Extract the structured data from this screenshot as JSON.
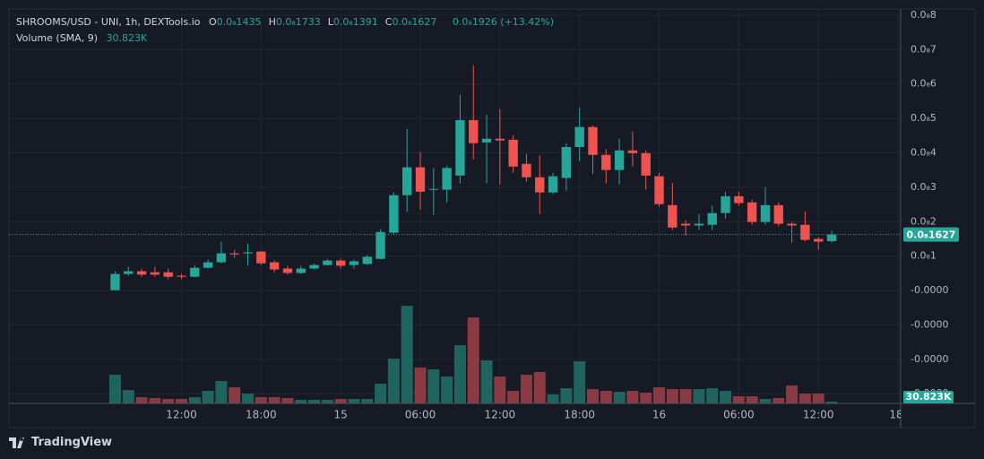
{
  "chart_data": {
    "type": "candlestick",
    "title": "SHROOMS/USD - UNI, 1h, DEXTools.io",
    "ohlc_labels": [
      "O",
      "H",
      "L",
      "C"
    ],
    "ohlc_values": [
      "0.0₈1435",
      "0.0₈1733",
      "0.0₈1391",
      "0.0₈1627"
    ],
    "change": "0.0₈1926 (+13.42%)",
    "volume_title": "Volume (SMA, 9)",
    "volume_sma_label": "30.823K",
    "last_price_label": "0.0₈1627",
    "x": [
      0,
      1,
      2,
      3,
      4,
      5,
      6,
      7,
      8,
      9,
      10,
      11,
      12,
      13,
      14,
      15,
      16,
      17,
      18,
      19,
      20,
      21,
      22,
      23,
      24,
      25,
      26,
      27,
      28,
      29,
      30,
      31,
      32,
      33,
      34,
      35,
      36,
      37,
      38,
      39,
      40,
      41,
      42,
      43,
      44,
      45,
      46,
      47,
      48,
      49,
      50,
      51,
      52,
      53,
      54
    ],
    "open": [
      1e-11,
      4.8e-10,
      5.6e-10,
      5.3e-10,
      5.3e-10,
      4.3e-10,
      4e-10,
      6.6e-10,
      8.2e-10,
      1.08e-09,
      1.08e-09,
      1.13e-09,
      8.2e-10,
      6.4e-10,
      5.1e-10,
      6.4e-10,
      7.4e-10,
      8.7e-10,
      7.4e-10,
      7.7e-10,
      9.2e-10,
      1.68e-09,
      2.77e-09,
      3.58e-09,
      2.93e-09,
      2.93e-09,
      3.34e-09,
      4.95e-09,
      4.3e-09,
      4.41e-09,
      4.38e-09,
      3.68e-09,
      3.29e-09,
      2.85e-09,
      3.27e-09,
      4.17e-09,
      4.75e-09,
      3.94e-09,
      3.5e-09,
      4.07e-09,
      3.99e-09,
      3.32e-09,
      2.48e-09,
      1.94e-09,
      1.89e-09,
      1.91e-09,
      2.25e-09,
      2.74e-09,
      2.56e-09,
      1.99e-09,
      2.48e-09,
      1.94e-09,
      1.91e-09,
      1.5e-09,
      1.435e-09
    ],
    "close": [
      4.8e-10,
      5.6e-10,
      4.6e-10,
      4.6e-10,
      4e-10,
      4e-10,
      6.6e-10,
      8.2e-10,
      1.08e-09,
      1.05e-09,
      1.11e-09,
      7.9e-10,
      6.1e-10,
      5.1e-10,
      6.4e-10,
      7.4e-10,
      8.7e-10,
      7.2e-10,
      8.5e-10,
      9.8e-10,
      1.7e-09,
      2.77e-09,
      3.58e-09,
      2.87e-09,
      2.95e-09,
      3.56e-09,
      4.95e-09,
      4.28e-09,
      4.41e-09,
      4.36e-09,
      3.6e-09,
      3.29e-09,
      2.85e-09,
      3.32e-09,
      4.17e-09,
      4.75e-09,
      3.94e-09,
      3.5e-09,
      4.07e-09,
      3.99e-09,
      3.34e-09,
      2.51e-09,
      1.83e-09,
      1.89e-09,
      1.94e-09,
      2.25e-09,
      2.74e-09,
      2.54e-09,
      1.99e-09,
      2.48e-09,
      1.94e-09,
      1.89e-09,
      1.47e-09,
      1.42e-09,
      1.627e-09
    ],
    "high": [
      5.6e-10,
      6.9e-10,
      6.4e-10,
      6.9e-10,
      6.4e-10,
      4.8e-10,
      7.4e-10,
      9e-10,
      1.42e-09,
      1.18e-09,
      1.37e-09,
      1.16e-09,
      8.7e-10,
      7.2e-10,
      7.2e-10,
      7.9e-10,
      9.2e-10,
      9.2e-10,
      9e-10,
      1.03e-09,
      1.78e-09,
      2.85e-09,
      4.7e-09,
      4.02e-09,
      3.56e-09,
      3.62e-09,
      5.69e-09,
      6.54e-09,
      5.11e-09,
      5.27e-09,
      4.51e-09,
      3.97e-09,
      3.92e-09,
      3.42e-09,
      4.28e-09,
      5.32e-09,
      4.8e-09,
      4.1e-09,
      4.41e-09,
      4.62e-09,
      4.07e-09,
      3.42e-09,
      3.13e-09,
      2.04e-09,
      2.22e-09,
      2.46e-09,
      2.87e-09,
      2.87e-09,
      2.64e-09,
      3e-09,
      2.56e-09,
      1.99e-09,
      2.3e-09,
      1.55e-09,
      1.733e-09
    ],
    "low": [
      0,
      4.3e-10,
      4e-10,
      4e-10,
      3.3e-10,
      3.3e-10,
      3.8e-10,
      6.4e-10,
      7.9e-10,
      9.5e-10,
      7.2e-10,
      7.4e-10,
      5.3e-10,
      4.6e-10,
      4.8e-10,
      6.1e-10,
      7.2e-10,
      6.4e-10,
      6.4e-10,
      7.4e-10,
      9e-10,
      1.63e-09,
      2.28e-09,
      2.35e-09,
      2.2e-09,
      2.56e-09,
      3.11e-09,
      3.81e-09,
      3.11e-09,
      3.08e-09,
      3.42e-09,
      3.16e-09,
      2.22e-09,
      2.8e-09,
      2.9e-09,
      3.76e-09,
      3.39e-09,
      3.11e-09,
      3.08e-09,
      3.6e-09,
      2.93e-09,
      2.43e-09,
      1.76e-09,
      1.6e-09,
      1.76e-09,
      1.76e-09,
      2.09e-09,
      2.46e-09,
      1.91e-09,
      1.91e-09,
      1.87e-09,
      1.39e-09,
      1.42e-09,
      1.18e-09,
      1.391e-09
    ],
    "volume": [
      104640,
      49050,
      22890,
      19620,
      16350,
      16350,
      22890,
      45780,
      81750,
      58860,
      35970,
      22890,
      22890,
      19620,
      13080,
      13080,
      13080,
      16350,
      16350,
      16350,
      71940,
      163500,
      356430,
      130800,
      124260,
      98100,
      212550,
      313920,
      156960,
      98100,
      45780,
      104640,
      114450,
      32700,
      55590,
      153690,
      52320,
      45780,
      42510,
      45780,
      39240,
      58860,
      52320,
      52320,
      52320,
      55590,
      45780,
      26160,
      26160,
      16350,
      19620,
      65400,
      35970,
      35970,
      6540
    ],
    "up_color": "#26a69a",
    "down_color": "#ef5350",
    "volume_up_color": "#1f645e",
    "volume_down_color": "#8a3a42",
    "xlim": [
      -8,
      59.2
    ],
    "xticks": [
      {
        "value": 5,
        "label": "12:00"
      },
      {
        "value": 11,
        "label": "18:00"
      },
      {
        "value": 17,
        "label": "15"
      },
      {
        "value": 23,
        "label": "06:00"
      },
      {
        "value": 29,
        "label": "12:00"
      },
      {
        "value": 35,
        "label": "18:00"
      },
      {
        "value": 41,
        "label": "16"
      },
      {
        "value": 47,
        "label": "06:00"
      },
      {
        "value": 53,
        "label": "12:00"
      },
      {
        "value": 59,
        "label": "18:"
      }
    ],
    "ylim": [
      -3.28e-09,
      8.18e-09
    ],
    "yticks": [
      {
        "value": 8e-09,
        "label": "0.0₈8"
      },
      {
        "value": 7e-09,
        "label": "0.0₈7"
      },
      {
        "value": 6e-09,
        "label": "0.0₈6"
      },
      {
        "value": 5e-09,
        "label": "0.0₈5"
      },
      {
        "value": 4e-09,
        "label": "0.0₈4"
      },
      {
        "value": 3e-09,
        "label": "0.0₈3"
      },
      {
        "value": 2e-09,
        "label": "0.0₈2"
      },
      {
        "value": 1e-09,
        "label": "0.0₈1"
      },
      {
        "value": 0,
        "label": "-0.0000"
      },
      {
        "value": -1e-09,
        "label": "-0.0000"
      },
      {
        "value": -2e-09,
        "label": "-0.0000"
      },
      {
        "value": -3e-09,
        "label": "-0.0000"
      }
    ],
    "volume_ylim": [
      0,
      1440000
    ],
    "grid": true
  },
  "branding": "TradingView"
}
